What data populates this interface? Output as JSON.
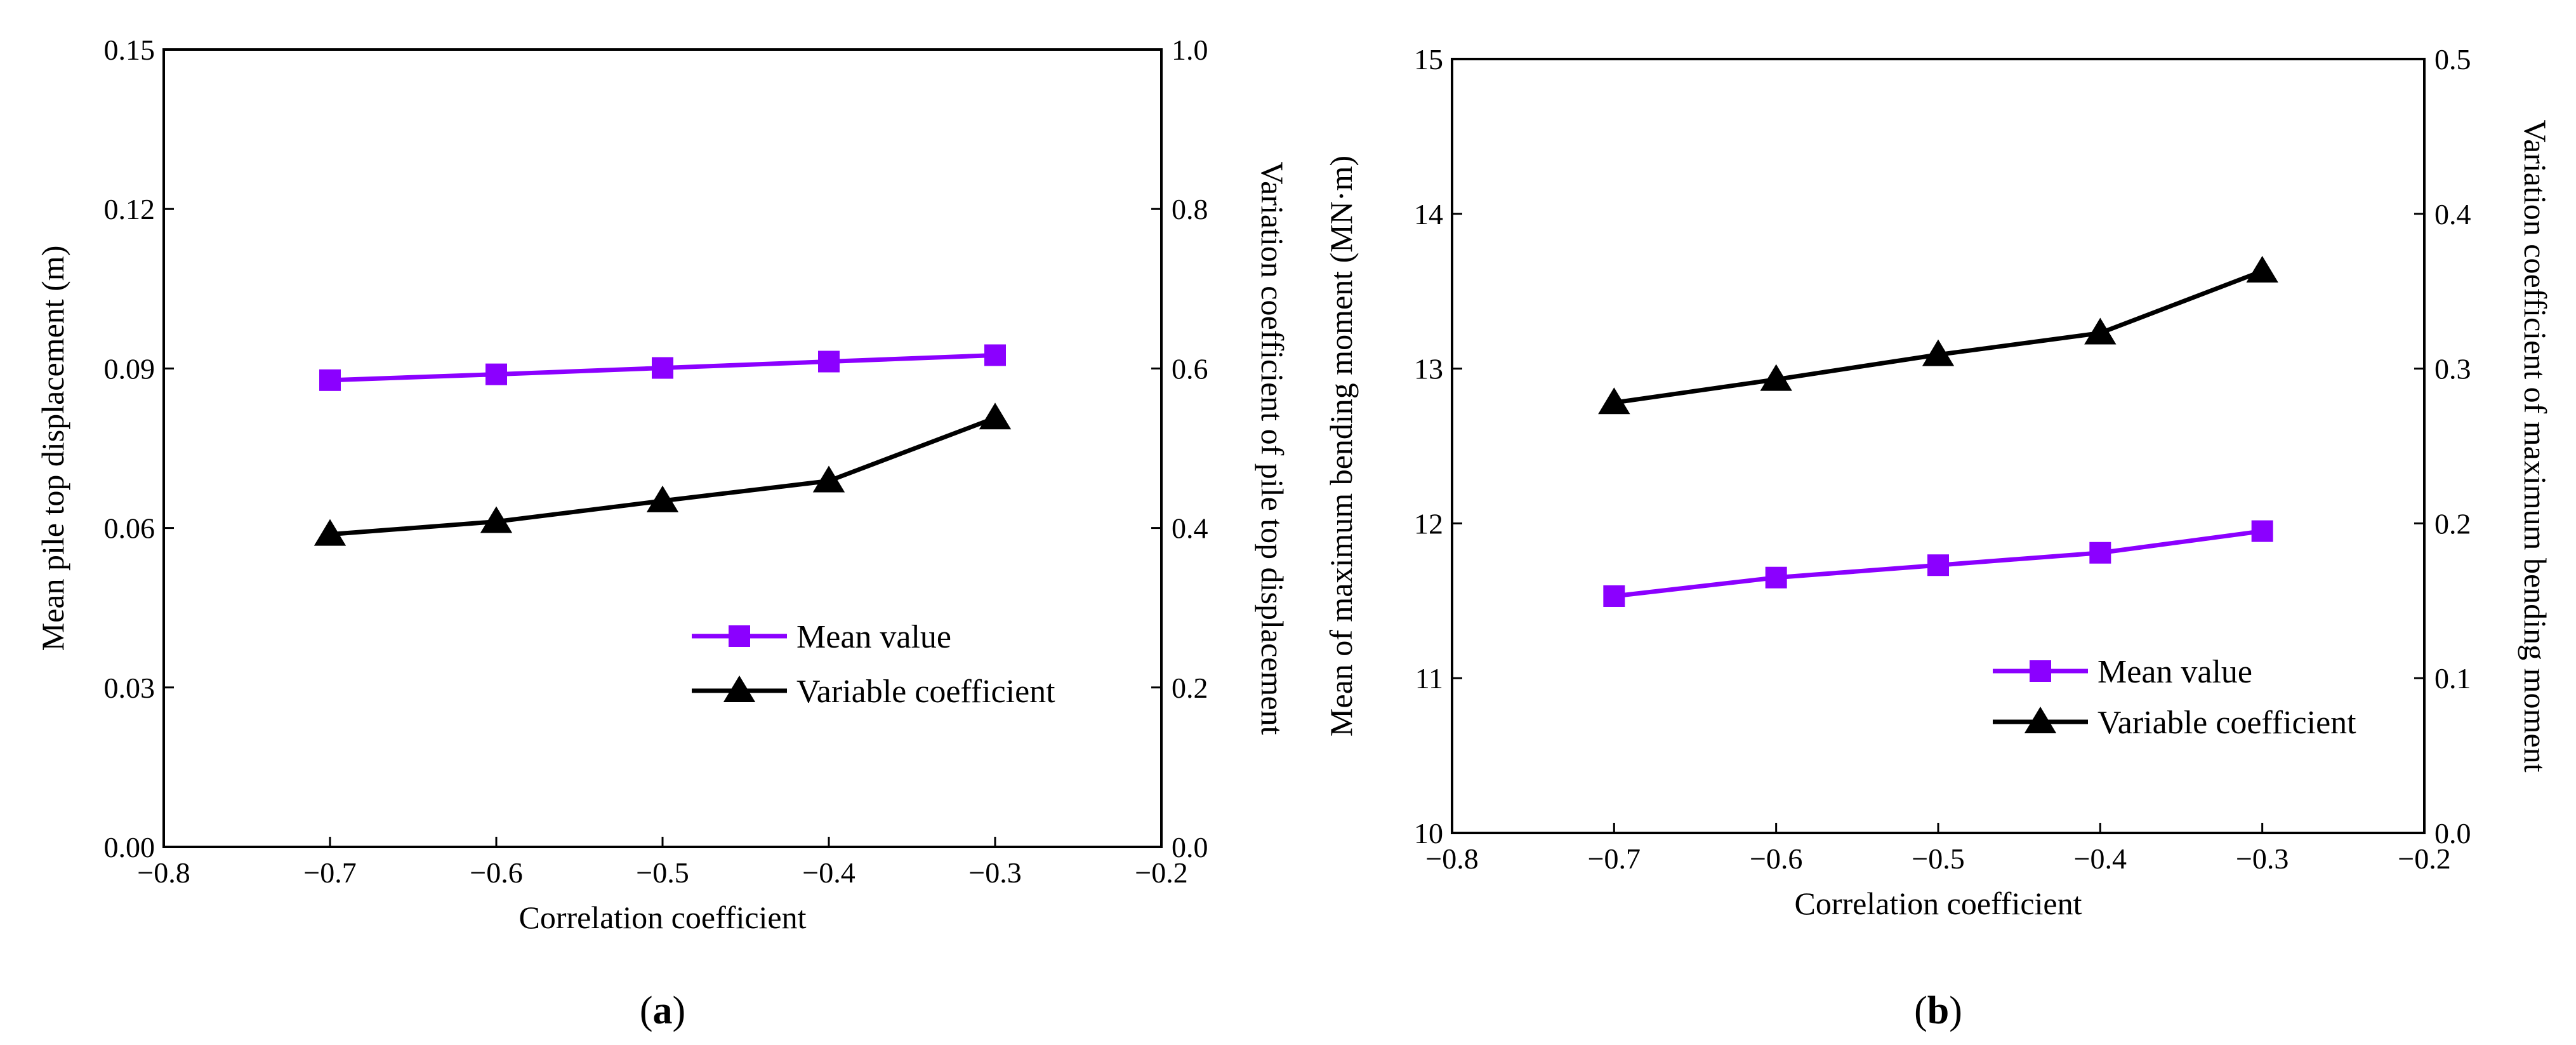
{
  "colors": {
    "mean": "#8b00ff",
    "coef": "#000000",
    "axis": "#000000"
  },
  "chart_data": [
    {
      "type": "line",
      "panel_label": "a",
      "xlabel": "Correlation coefficient",
      "ylabel": "Mean pile top displacement (m)",
      "y2label": "Variation coefficient of pile top displacement",
      "xlim": [
        -0.8,
        -0.2
      ],
      "xticks": [
        -0.8,
        -0.7,
        -0.6,
        -0.5,
        -0.4,
        -0.3,
        -0.2
      ],
      "xtick_labels": [
        "−0.8",
        "−0.7",
        "−0.6",
        "−0.5",
        "−0.4",
        "−0.3",
        "−0.2"
      ],
      "ylim": [
        0,
        0.15
      ],
      "yticks": [
        0,
        0.03,
        0.06,
        0.09,
        0.12,
        0.15
      ],
      "ytick_labels": [
        "0.00",
        "0.03",
        "0.06",
        "0.09",
        "0.12",
        "0.15"
      ],
      "y2lim": [
        0,
        1.0
      ],
      "y2ticks": [
        0,
        0.2,
        0.4,
        0.6,
        0.8,
        1.0
      ],
      "y2tick_labels": [
        "0.0",
        "0.2",
        "0.4",
        "0.6",
        "0.8",
        "1.0"
      ],
      "x": [
        -0.7,
        -0.6,
        -0.5,
        -0.4,
        -0.3
      ],
      "series": [
        {
          "name": "Mean value",
          "axis": "left",
          "marker": "square",
          "values": [
            0.0878,
            0.0889,
            0.0901,
            0.0913,
            0.0925
          ]
        },
        {
          "name": "Variable coefficient",
          "axis": "right",
          "marker": "triangle",
          "values": [
            0.392,
            0.408,
            0.434,
            0.459,
            0.538
          ]
        }
      ],
      "legend_position": "lower-right"
    },
    {
      "type": "line",
      "panel_label": "b",
      "xlabel": "Correlation coefficient",
      "ylabel": "Mean of maximum bending moment (MN·m)",
      "y2label": "Variation coefficient of maximum bending moment",
      "xlim": [
        -0.8,
        -0.2
      ],
      "xticks": [
        -0.8,
        -0.7,
        -0.6,
        -0.5,
        -0.4,
        -0.3,
        -0.2
      ],
      "xtick_labels": [
        "−0.8",
        "−0.7",
        "−0.6",
        "−0.5",
        "−0.4",
        "−0.3",
        "−0.2"
      ],
      "ylim": [
        10,
        15
      ],
      "yticks": [
        10,
        11,
        12,
        13,
        14,
        15
      ],
      "ytick_labels": [
        "10",
        "11",
        "12",
        "13",
        "14",
        "15"
      ],
      "y2lim": [
        0,
        0.5
      ],
      "y2ticks": [
        0,
        0.1,
        0.2,
        0.3,
        0.4,
        0.5
      ],
      "y2tick_labels": [
        "0.0",
        "0.1",
        "0.2",
        "0.3",
        "0.4",
        "0.5"
      ],
      "x": [
        -0.7,
        -0.6,
        -0.5,
        -0.4,
        -0.3
      ],
      "series": [
        {
          "name": "Mean value",
          "axis": "left",
          "marker": "square",
          "values": [
            11.53,
            11.65,
            11.73,
            11.81,
            11.95
          ]
        },
        {
          "name": "Variable coefficient",
          "axis": "right",
          "marker": "triangle",
          "values": [
            0.278,
            0.293,
            0.309,
            0.323,
            0.363
          ]
        }
      ],
      "legend_position": "lower-right"
    }
  ]
}
